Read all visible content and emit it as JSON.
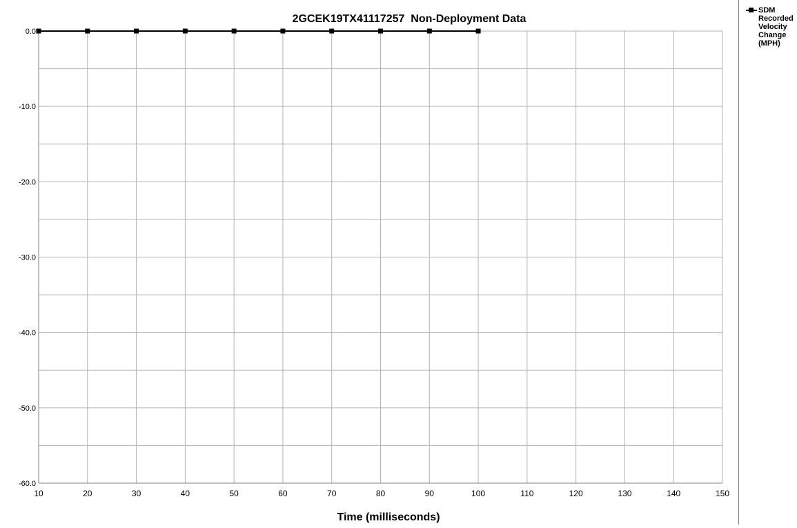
{
  "chart_data": {
    "type": "line",
    "title": "2GCEK19TX41117257  Non-Deployment Data",
    "xlabel": "Time (milliseconds)",
    "ylabel": "",
    "xlim": [
      10,
      150
    ],
    "ylim": [
      -60,
      0
    ],
    "x_ticks": [
      10,
      20,
      30,
      40,
      50,
      60,
      70,
      80,
      90,
      100,
      110,
      120,
      130,
      140,
      150
    ],
    "x_tick_labels": [
      "10",
      "20",
      "30",
      "40",
      "50",
      "60",
      "70",
      "80",
      "90",
      "100",
      "110",
      "120",
      "130",
      "140",
      "150"
    ],
    "y_ticks": [
      0,
      -10,
      -20,
      -30,
      -40,
      -50,
      -60
    ],
    "y_tick_labels": [
      "0.0",
      "-10.0",
      "-20.0",
      "-30.0",
      "-40.0",
      "-50.0",
      "-60.0"
    ],
    "y_minor_gridlines": [
      -5,
      -15,
      -25,
      -35,
      -45,
      -55
    ],
    "grid": true,
    "legend_position": "right",
    "series": [
      {
        "name": "SDM Recorded Velocity Change (MPH)",
        "color": "#000000",
        "marker": "square",
        "x": [
          10,
          20,
          30,
          40,
          50,
          60,
          70,
          80,
          90,
          100
        ],
        "values": [
          0,
          0,
          0,
          0,
          0,
          0,
          0,
          0,
          0,
          0
        ]
      }
    ]
  }
}
